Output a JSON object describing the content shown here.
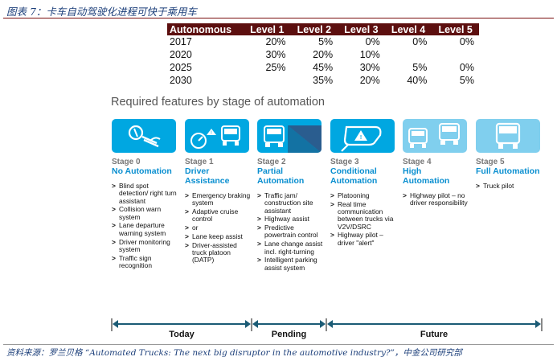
{
  "title": "图表 7：卡车自动驾驶化进程可快于乘用车",
  "table": {
    "headers": [
      "Autonomous",
      "Level 1",
      "Level 2",
      "Level 3",
      "Level 4",
      "Level 5"
    ],
    "rows": [
      [
        "2017",
        "20%",
        "5%",
        "0%",
        "0%",
        "0%"
      ],
      [
        "2020",
        "30%",
        "20%",
        "10%",
        "",
        ""
      ],
      [
        "2025",
        "25%",
        "45%",
        "30%",
        "5%",
        "0%"
      ],
      [
        "2030",
        "",
        "35%",
        "20%",
        "40%",
        "5%"
      ]
    ]
  },
  "features_heading": "Required features by stage of automation",
  "stages": [
    {
      "stage": "Stage 0",
      "name": "No Automation",
      "icon": "steering-wheel-icon",
      "items": [
        "Blind spot detection/ right turn assistant",
        "Collision warn system",
        "Lane departure warning system",
        "Driver monitoring system",
        "Traffic sign recognition"
      ]
    },
    {
      "stage": "Stage 1",
      "name": "Driver Assistance",
      "icon": "speedometer-truck-icon",
      "items": [
        "Emergency braking system",
        "Adaptive cruise control",
        "or",
        "Lane keep assist",
        "Driver-assisted truck platoon (DATP)"
      ]
    },
    {
      "stage": "Stage 2",
      "name": "Partial Automation",
      "icon": "truck-road-icon",
      "items": [
        "Traffic jam/ construction site assistant",
        "Highway assist",
        "Predictive powertrain control",
        "Lane change assist incl. right-turning",
        "Intelligent parking assist system"
      ]
    },
    {
      "stage": "Stage 3",
      "name": "Conditional Automation",
      "icon": "warning-mirror-icon",
      "items": [
        "Platooning",
        "Real time communication between trucks via V2V/DSRC",
        "Highway pilot – driver \"alert\""
      ]
    },
    {
      "stage": "Stage 4",
      "name": "High Automation",
      "icon": "trucks-platoon-icon",
      "items": [
        "Highway pilot – no driver responsibility"
      ]
    },
    {
      "stage": "Stage 5",
      "name": "Full Automation",
      "icon": "truck-front-icon",
      "items": [
        "Truck pilot"
      ]
    }
  ],
  "timeline": {
    "today": "Today",
    "pending": "Pending",
    "future": "Future"
  },
  "colors": {
    "accent": "#00a7e1",
    "accent_light": "#80cfee",
    "header_bg": "#5c0f0f",
    "stage_name": "#0a8fd0"
  },
  "source": "资料来源：罗兰贝格 “Automated Trucks: The next big disruptor in the automotive industry?”，中金公司研究部"
}
